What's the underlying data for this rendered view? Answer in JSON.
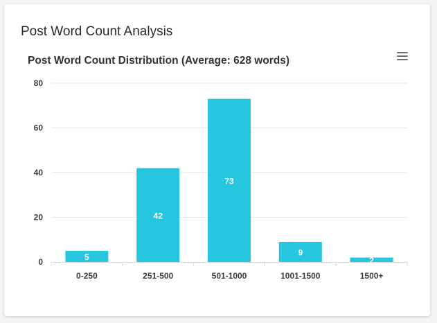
{
  "card": {
    "title": "Post Word Count Analysis"
  },
  "chart_data": {
    "type": "bar",
    "title": "Post Word Count Distribution (Average: 628 words)",
    "categories": [
      "0-250",
      "251-500",
      "501-1000",
      "1001-1500",
      "1500+"
    ],
    "values": [
      5,
      42,
      73,
      9,
      2
    ],
    "ylim": [
      0,
      80
    ],
    "yticks": [
      0,
      20,
      40,
      60,
      80
    ],
    "grid": true,
    "color": "#26c6e0",
    "xlabel": "",
    "ylabel": ""
  },
  "toolbar": {
    "menu_icon": "hamburger-menu-icon"
  }
}
